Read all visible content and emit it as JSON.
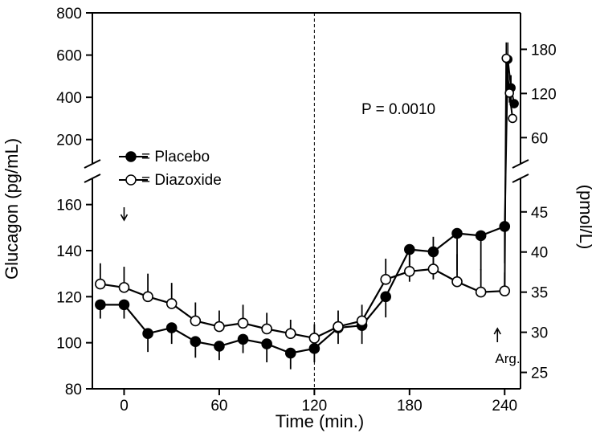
{
  "chart_data": {
    "type": "line",
    "xlabel": "Time (min.)",
    "ylabel": "Glucagon (pg/mL)",
    "ylabel_right": "(pmol/L)",
    "x_ticks": [
      0,
      60,
      120,
      180,
      240
    ],
    "y_ticks_lower": [
      80,
      100,
      120,
      140,
      160
    ],
    "y_ticks_upper": [
      200,
      400,
      600,
      800
    ],
    "y_right_ticks_lower": [
      25,
      30,
      35,
      40,
      45
    ],
    "y_right_ticks_upper": [
      60,
      120,
      180
    ],
    "y_break": true,
    "ylim_lower": [
      80,
      170
    ],
    "ylim_upper": [
      100,
      800
    ],
    "xlim": [
      -20,
      250
    ],
    "vertical_marker_x": 120,
    "annotations": {
      "p_value": "P = 0.0010",
      "arrow_down_at": 0,
      "arrow_up_at": 240,
      "arg_label": "Arg."
    },
    "legend": [
      {
        "marker": "filled",
        "label": "= Placebo"
      },
      {
        "marker": "open",
        "label": "= Diazoxide"
      }
    ],
    "series": [
      {
        "name": "Placebo",
        "marker": "filled",
        "x": [
          -15,
          0,
          15,
          30,
          45,
          60,
          75,
          90,
          105,
          120,
          135,
          150,
          165,
          180,
          195,
          210,
          225,
          240
        ],
        "y": [
          116.5,
          116.5,
          104,
          106.5,
          100.5,
          98.5,
          101.5,
          99.5,
          95.5,
          97.5,
          106.5,
          107.5,
          120,
          140.5,
          139.5,
          147.5,
          146.5,
          150.5
        ],
        "err": [
          6,
          6,
          8,
          7,
          7,
          6,
          6,
          8,
          7,
          6,
          7,
          8,
          9,
          14,
          12,
          16,
          15,
          16
        ],
        "x_upper": [
          242,
          244,
          246
        ],
        "y_upper": [
          580,
          445,
          370
        ],
        "err_upper": [
          80,
          60,
          20
        ]
      },
      {
        "name": "Diazoxide",
        "marker": "open",
        "x": [
          -15,
          0,
          15,
          30,
          45,
          60,
          75,
          90,
          105,
          120,
          135,
          150,
          165,
          180,
          195,
          210,
          225,
          240
        ],
        "y": [
          125.5,
          124,
          120,
          117,
          109.5,
          107,
          108.5,
          106,
          104,
          102,
          107,
          109.5,
          127.5,
          131,
          132,
          126.5,
          122,
          122.5
        ],
        "err": [
          9,
          9,
          10,
          9,
          8,
          7,
          8,
          7,
          6,
          6,
          7,
          7,
          9,
          10,
          14,
          12,
          10,
          8
        ],
        "x_upper": [
          241,
          243,
          245
        ],
        "y_upper": [
          585,
          420,
          300
        ],
        "err_upper": [
          75,
          45,
          15
        ]
      }
    ]
  }
}
